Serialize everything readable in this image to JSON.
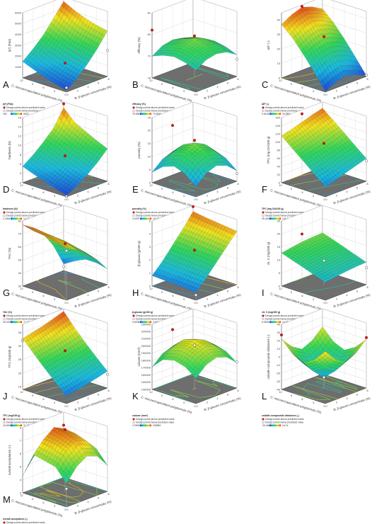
{
  "figure": {
    "xlabel": "B: β-glucan concentrate (%)",
    "ylabel": "C: microencapsulated polyphenols (%)",
    "legend_above": "Design points above predicted value",
    "legend_below": "Design points below predicted value",
    "colors": {
      "low": "#1f3fd8",
      "mid": "#2fd65a",
      "high": "#e02a18",
      "above": "#d7191c",
      "below": "#ffffff"
    }
  },
  "chart_data": [
    {
      "panel": "A",
      "type": "surface",
      "zlabel": "|η*| (Pas)",
      "legend_title": "|η*| (Pas)",
      "legend_min": "160",
      "legend_max": "5620",
      "zticks": [
        "1000",
        "2000",
        "3000",
        "4000",
        "5000",
        "6000"
      ],
      "zmin": 0,
      "zmax": 6000,
      "x": [
        0,
        2,
        4,
        6,
        8
      ],
      "y": [
        0,
        3,
        6,
        9,
        12
      ],
      "xticks": [
        "0",
        "2",
        "4",
        "6",
        "8"
      ],
      "yticks": [
        "0",
        "3",
        "6",
        "9",
        "12"
      ],
      "z": [
        [
          160,
          900,
          1800,
          2900,
          4200
        ],
        [
          400,
          1100,
          2000,
          3100,
          4400
        ],
        [
          700,
          1400,
          2300,
          3400,
          4700
        ],
        [
          1100,
          1800,
          2700,
          3900,
          5100
        ],
        [
          1500,
          2300,
          3200,
          4400,
          5620
        ]
      ],
      "points_above": [
        [
          8,
          12,
          5900
        ],
        [
          4,
          6,
          1300
        ]
      ],
      "points_below": [
        [
          0,
          0,
          400
        ],
        [
          8,
          0,
          2400
        ]
      ]
    },
    {
      "panel": "B",
      "type": "surface",
      "zlabel": "efficacy (%)",
      "legend_title": "efficacy (%)",
      "legend_min": "78.9869",
      "legend_max": "79.8446",
      "zticks": [
        "78",
        "79",
        "80",
        "81"
      ],
      "zmin": 78,
      "zmax": 81,
      "x": [
        0,
        2,
        4,
        6,
        8
      ],
      "y": [
        0,
        3,
        6,
        9,
        12
      ],
      "xticks": [
        "0",
        "2",
        "4",
        "6",
        "8"
      ],
      "yticks": [
        "0",
        "3",
        "6",
        "9",
        "12"
      ],
      "z": [
        [
          79.0,
          79.3,
          79.4,
          79.3,
          79.0
        ],
        [
          79.2,
          79.5,
          79.6,
          79.5,
          79.2
        ],
        [
          79.3,
          79.6,
          79.8,
          79.6,
          79.3
        ],
        [
          79.2,
          79.5,
          79.6,
          79.5,
          79.2
        ],
        [
          79.0,
          79.3,
          79.4,
          79.3,
          79.0
        ]
      ],
      "points_above": [
        [
          0,
          12,
          80.2
        ],
        [
          4,
          6,
          79.9
        ]
      ],
      "points_below": [
        [
          8,
          0,
          78.8
        ]
      ]
    },
    {
      "panel": "C",
      "type": "surface",
      "zlabel": "ΔE* (-)",
      "legend_title": "ΔE* (-)",
      "legend_min": "0.6145",
      "legend_max": "43.5657",
      "zticks": [
        "0",
        "10",
        "20",
        "30",
        "40"
      ],
      "zmin": 0,
      "zmax": 45,
      "x": [
        0,
        2,
        4,
        6,
        8
      ],
      "y": [
        0,
        3,
        6,
        9,
        12
      ],
      "xticks": [
        "0",
        "2",
        "4",
        "6",
        "8"
      ],
      "yticks": [
        "0",
        "3",
        "6",
        "9",
        "12"
      ],
      "z": [
        [
          0.6,
          4,
          6,
          4,
          0.6
        ],
        [
          11,
          15,
          17,
          15,
          11
        ],
        [
          21,
          25,
          27,
          25,
          21
        ],
        [
          30,
          34,
          36,
          34,
          30
        ],
        [
          37,
          41,
          43.5,
          41,
          37
        ]
      ],
      "points_above": [
        [
          4,
          12,
          44
        ],
        [
          4,
          6,
          28
        ]
      ],
      "points_below": [
        [
          8,
          0,
          1
        ]
      ]
    },
    {
      "panel": "D",
      "type": "surface",
      "zlabel": "hardness (N)",
      "legend_title": "hardness (N)",
      "legend_min": "2.2664",
      "legend_max": "14.7664",
      "zticks": [
        "2",
        "4",
        "6",
        "8",
        "10",
        "12",
        "14",
        "16"
      ],
      "zmin": 2,
      "zmax": 16,
      "x": [
        0,
        2,
        4,
        6,
        8
      ],
      "y": [
        0,
        3,
        6,
        9,
        12
      ],
      "xticks": [
        "0",
        "2",
        "4",
        "6",
        "8"
      ],
      "yticks": [
        "0",
        "3",
        "6",
        "9",
        "12"
      ],
      "z": [
        [
          2.3,
          3.5,
          5.0,
          6.8,
          9.0
        ],
        [
          3.0,
          4.3,
          5.9,
          7.8,
          10.0
        ],
        [
          3.8,
          5.2,
          6.9,
          8.9,
          11.2
        ],
        [
          4.6,
          6.1,
          7.9,
          10.0,
          12.4
        ],
        [
          5.5,
          7.1,
          9.0,
          11.2,
          14.8
        ]
      ],
      "points_above": [
        [
          8,
          12,
          15.6
        ],
        [
          4,
          6,
          7.6
        ]
      ],
      "points_below": [
        [
          0,
          0,
          2.1
        ]
      ]
    },
    {
      "panel": "E",
      "type": "surface",
      "zlabel": "porosity (%)",
      "legend_title": "porosity (%)",
      "legend_min": "4.0097",
      "legend_max": "15.0117",
      "zticks": [
        "0",
        "5",
        "10",
        "15",
        "20",
        "25"
      ],
      "zmin": 0,
      "zmax": 25,
      "x": [
        0,
        2,
        4,
        6,
        8
      ],
      "y": [
        0,
        3,
        6,
        9,
        12
      ],
      "xticks": [
        "0",
        "2",
        "4",
        "6",
        "8"
      ],
      "yticks": [
        "0",
        "3",
        "6",
        "9",
        "12"
      ],
      "z": [
        [
          4.0,
          7.5,
          9.0,
          7.5,
          4.0
        ],
        [
          7.5,
          11.5,
          13.0,
          11.5,
          7.5
        ],
        [
          9.0,
          13.0,
          15.0,
          13.0,
          9.0
        ],
        [
          7.5,
          11.5,
          13.0,
          11.5,
          7.5
        ],
        [
          4.0,
          7.5,
          9.0,
          7.5,
          4.0
        ]
      ],
      "points_above": [
        [
          4,
          12,
          19
        ],
        [
          4,
          6,
          16
        ]
      ],
      "points_below": [
        [
          8,
          0,
          3
        ]
      ]
    },
    {
      "panel": "F",
      "type": "surface",
      "zlabel": "TPC (mg GA/100 g)",
      "legend_title": "TPC (mg GA/100 g)",
      "legend_min": "25.4405",
      "legend_max": "145.441",
      "zticks": [
        "0",
        "20",
        "40",
        "60",
        "80",
        "100",
        "120",
        "140",
        "160"
      ],
      "zmin": 0,
      "zmax": 160,
      "x": [
        0,
        2,
        4,
        6,
        8
      ],
      "y": [
        0,
        3,
        6,
        9,
        12
      ],
      "xticks": [
        "0",
        "2",
        "4",
        "6",
        "8"
      ],
      "yticks": [
        "0",
        "3",
        "6",
        "9",
        "12"
      ],
      "z": [
        [
          25,
          32,
          40,
          48,
          56
        ],
        [
          47,
          54,
          62,
          70,
          78
        ],
        [
          70,
          77,
          85,
          93,
          101
        ],
        [
          92,
          99,
          107,
          115,
          123
        ],
        [
          115,
          122,
          130,
          138,
          145
        ]
      ],
      "points_above": [
        [
          4,
          12,
          150
        ],
        [
          4,
          6,
          95
        ]
      ],
      "points_below": [
        [
          8,
          0,
          50
        ]
      ]
    },
    {
      "panel": "G",
      "type": "surface",
      "zlabel": "TAC (%)",
      "legend_title": "TAC (%)",
      "legend_min": "35.2209",
      "legend_max": "77.1174",
      "zticks": [
        "30",
        "40",
        "50",
        "60",
        "70",
        "80"
      ],
      "zmin": 30,
      "zmax": 80,
      "x": [
        0,
        2,
        4,
        6,
        8
      ],
      "y": [
        0,
        3,
        6,
        9,
        12
      ],
      "xticks": [
        "0",
        "2",
        "4",
        "6",
        "8"
      ],
      "yticks": [
        "0",
        "3",
        "6",
        "9",
        "12"
      ],
      "z": [
        [
          70,
          66,
          60,
          52,
          42
        ],
        [
          72,
          68,
          62,
          54,
          44
        ],
        [
          74,
          70,
          64,
          55,
          44
        ],
        [
          75,
          71,
          64,
          54,
          40
        ],
        [
          77,
          72,
          64,
          52,
          35
        ]
      ],
      "points_above": [
        [
          4,
          6,
          62
        ]
      ],
      "points_below": [
        [
          8,
          12,
          33
        ],
        [
          0,
          0,
          68
        ]
      ]
    },
    {
      "panel": "H",
      "type": "surface",
      "zlabel": "β-glucan (g/100 g)",
      "legend_title": "β-glucan (g/100 g)",
      "legend_min": "0.60383",
      "legend_max": "4.5413",
      "zticks": [
        "0",
        "1",
        "2",
        "3",
        "4",
        "5"
      ],
      "zmin": 0,
      "zmax": 5,
      "x": [
        0,
        2,
        4,
        6,
        8
      ],
      "y": [
        0,
        3,
        6,
        9,
        12
      ],
      "xticks": [
        "0",
        "2",
        "4",
        "6",
        "8"
      ],
      "yticks": [
        "0",
        "3",
        "6",
        "9",
        "12"
      ],
      "z": [
        [
          0.6,
          1.4,
          2.3,
          3.2,
          4.1
        ],
        [
          0.65,
          1.45,
          2.35,
          3.3,
          4.2
        ],
        [
          0.7,
          1.5,
          2.4,
          3.4,
          4.3
        ],
        [
          0.75,
          1.55,
          2.5,
          3.45,
          4.4
        ],
        [
          0.8,
          1.6,
          2.55,
          3.5,
          4.54
        ]
      ],
      "points_above": [
        [
          8,
          12,
          4.9
        ],
        [
          4,
          6,
          2.7
        ]
      ],
      "points_below": [
        [
          0,
          0,
          0.4
        ]
      ]
    },
    {
      "panel": "I",
      "type": "surface",
      "zlabel": "vit. C (mg/100 g)",
      "legend_title": "vit. C (mg/100 g)",
      "legend_min": "6.9053",
      "legend_max": "14.5104",
      "zticks": [
        "0",
        "5",
        "10",
        "15",
        "20",
        "25"
      ],
      "zmin": 0,
      "zmax": 25,
      "x": [
        0,
        2,
        4,
        6,
        8
      ],
      "y": [
        0,
        3,
        6,
        9,
        12
      ],
      "xticks": [
        "0",
        "2",
        "4",
        "6",
        "8"
      ],
      "yticks": [
        "0",
        "3",
        "6",
        "9",
        "12"
      ],
      "z": [
        [
          6.9,
          7.5,
          8.0,
          8.4,
          8.6
        ],
        [
          8.3,
          9.0,
          9.5,
          9.9,
          10.1
        ],
        [
          9.8,
          10.5,
          11.0,
          11.4,
          11.6
        ],
        [
          11.2,
          12.0,
          12.5,
          12.9,
          13.1
        ],
        [
          12.7,
          13.4,
          14.0,
          14.3,
          14.5
        ]
      ],
      "points_above": [
        [
          4,
          12,
          17
        ]
      ],
      "points_below": [
        [
          4,
          6,
          9.5
        ],
        [
          8,
          0,
          6.5
        ]
      ]
    },
    {
      "panel": "J",
      "type": "surface",
      "zlabel": "TFC (mg/100 g)",
      "legend_title": "TFC (mg/100 g)",
      "legend_min": "16.8332",
      "legend_max": "37.0823",
      "zticks": [
        "15",
        "20",
        "25",
        "30",
        "35"
      ],
      "zmin": 14,
      "zmax": 38,
      "x": [
        0,
        2,
        4,
        6,
        8
      ],
      "y": [
        0,
        3,
        6,
        9,
        12
      ],
      "xticks": [
        "0",
        "2",
        "4",
        "6",
        "8"
      ],
      "yticks": [
        "0",
        "3",
        "6",
        "9",
        "12"
      ],
      "z": [
        [
          16.8,
          17.5,
          18.3,
          19.2,
          20.2
        ],
        [
          20.5,
          21.3,
          22.1,
          23.0,
          24.0
        ],
        [
          24.4,
          25.2,
          26.0,
          27.0,
          28.0
        ],
        [
          28.5,
          29.3,
          30.2,
          31.2,
          32.3
        ],
        [
          32.8,
          33.7,
          34.6,
          35.8,
          37.1
        ]
      ],
      "points_above": [
        [
          4,
          6,
          28
        ]
      ],
      "points_below": [
        [
          8,
          0,
          19
        ],
        [
          0,
          12,
          32
        ]
      ]
    },
    {
      "panel": "K",
      "type": "surface",
      "zlabel": "volume (mm³)",
      "legend_title": "volume (mm³)",
      "legend_min": "170526",
      "legend_max": "208384",
      "zticks": [
        "140000",
        "150000",
        "160000",
        "170000",
        "180000",
        "190000",
        "200000",
        "210000",
        "220000",
        "230000"
      ],
      "zmin": 140000,
      "zmax": 230000,
      "x": [
        0,
        2,
        4,
        6,
        8
      ],
      "y": [
        0,
        3,
        6,
        9,
        12
      ],
      "xticks": [
        "0",
        "2",
        "4",
        "6",
        "8"
      ],
      "yticks": [
        "0",
        "3",
        "6",
        "9",
        "12"
      ],
      "z": [
        [
          175000,
          188000,
          193000,
          188000,
          175000
        ],
        [
          186000,
          198000,
          203000,
          198000,
          186000
        ],
        [
          190000,
          202000,
          208000,
          202000,
          190000
        ],
        [
          186000,
          198000,
          203000,
          198000,
          186000
        ],
        [
          171000,
          184000,
          189000,
          184000,
          171000
        ]
      ],
      "points_above": [
        [
          4,
          12,
          212000
        ]
      ],
      "points_below": [
        [
          8,
          0,
          176000
        ],
        [
          4,
          6,
          200000
        ]
      ]
    },
    {
      "panel": "L",
      "type": "surface",
      "zlabel": "volatile compounds distances (-)",
      "legend_title": "volatile compounds distances (-)",
      "legend_min": "-26.468",
      "legend_max": "24.14",
      "zticks": [
        "-40",
        "-30",
        "-20",
        "-10",
        "0",
        "10",
        "20",
        "30",
        "40"
      ],
      "zmin": -40,
      "zmax": 40,
      "x": [
        0,
        2,
        4,
        6,
        8
      ],
      "y": [
        0,
        3,
        6,
        9,
        12
      ],
      "xticks": [
        "0",
        "2",
        "4",
        "6",
        "8"
      ],
      "yticks": [
        "0",
        "3",
        "6",
        "9",
        "12"
      ],
      "z": [
        [
          24,
          10,
          2,
          8,
          20
        ],
        [
          10,
          -6,
          -14,
          -8,
          6
        ],
        [
          2,
          -14,
          -26,
          -15,
          -2
        ],
        [
          8,
          -8,
          -16,
          -10,
          4
        ],
        [
          22,
          8,
          0,
          6,
          18
        ]
      ],
      "points_above": [
        [
          0,
          12,
          27
        ],
        [
          8,
          0,
          22
        ]
      ],
      "points_below": [
        [
          4,
          6,
          -26
        ]
      ]
    },
    {
      "panel": "M",
      "type": "surface",
      "zlabel": "overall acceptance (-)",
      "legend_title": "overall acceptance (-)",
      "legend_min": "4.3",
      "legend_max": "7.7",
      "zticks": [
        "3",
        "4",
        "5",
        "6",
        "7",
        "8"
      ],
      "zmin": 3,
      "zmax": 8,
      "x": [
        0,
        2,
        4,
        6,
        8
      ],
      "y": [
        0,
        3,
        6,
        9,
        12
      ],
      "xticks": [
        "0",
        "2",
        "4",
        "6",
        "8"
      ],
      "yticks": [
        "0",
        "3",
        "6",
        "9",
        "12"
      ],
      "z": [
        [
          4.8,
          5.8,
          6.3,
          6.0,
          5.0
        ],
        [
          5.8,
          6.7,
          7.2,
          6.9,
          6.0
        ],
        [
          6.0,
          7.0,
          7.5,
          7.2,
          6.3
        ],
        [
          6.2,
          7.1,
          7.7,
          7.3,
          6.5
        ],
        [
          4.3,
          5.4,
          6.0,
          5.6,
          4.6
        ]
      ],
      "points_above": [
        [
          8,
          12,
          7.0
        ],
        [
          4,
          6,
          7.8
        ]
      ],
      "points_below": [
        [
          0,
          0,
          4.4
        ]
      ]
    }
  ]
}
